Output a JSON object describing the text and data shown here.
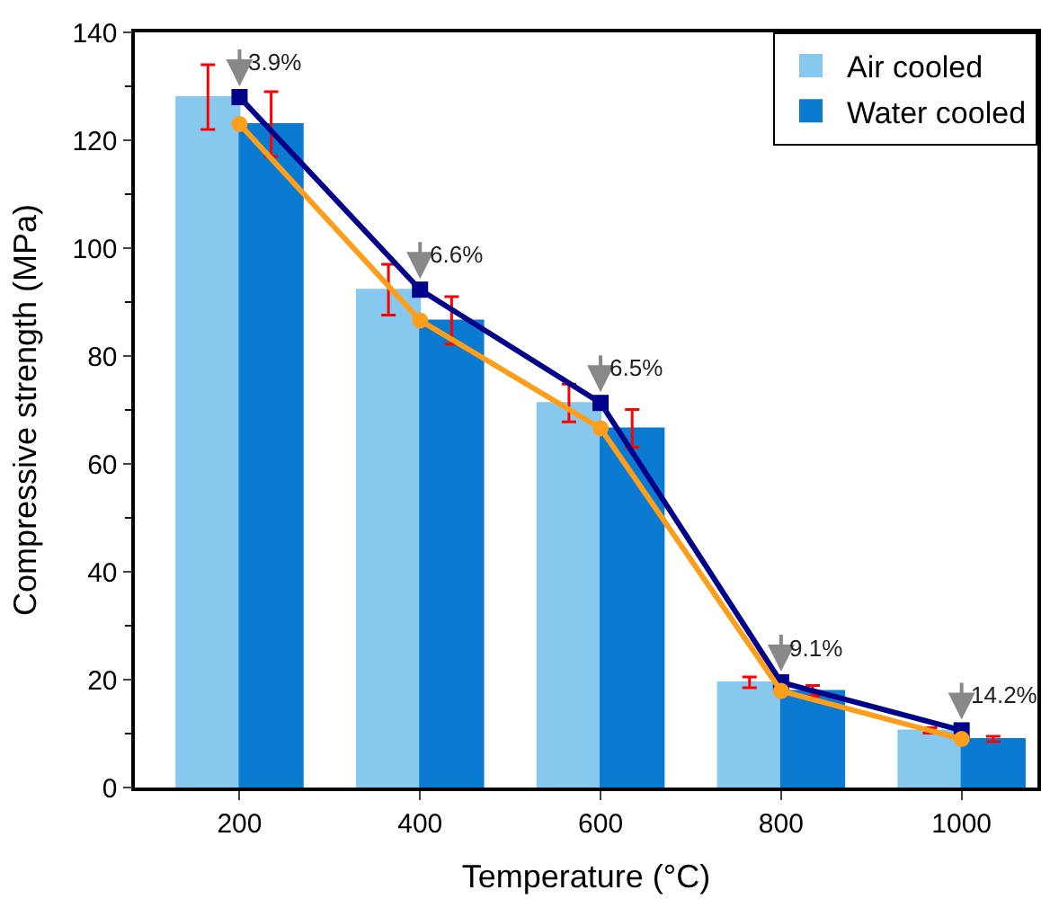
{
  "chart_data": {
    "type": "bar",
    "xlabel": "Temperature (°C)",
    "ylabel": "Compressive strength (MPa)",
    "categories": [
      "200",
      "400",
      "600",
      "800",
      "1000"
    ],
    "series": [
      {
        "name": "Air cooled",
        "color": "#87c8ee",
        "values": [
          128,
          92.3,
          71.3,
          19.5,
          10.6
        ],
        "errors": [
          6,
          4.7,
          3.5,
          1,
          0.5
        ]
      },
      {
        "name": "Water cooled",
        "color": "#0a7bd0",
        "values": [
          123,
          86.6,
          66.6,
          17.9,
          9.0
        ],
        "errors": [
          6,
          4.4,
          3.5,
          1,
          0.5
        ]
      },
      {
        "type": "line",
        "color": "#00008b",
        "marker": "square",
        "values": [
          128,
          92.3,
          71.3,
          19.5,
          10.6
        ]
      },
      {
        "type": "line",
        "color": "#ff9e1b",
        "marker": "circle",
        "values": [
          123,
          86.6,
          66.6,
          17.9,
          9.0
        ]
      }
    ],
    "annotations": [
      {
        "text": "3.9%",
        "x": "200",
        "y": 128
      },
      {
        "text": "6.6%",
        "x": "400",
        "y": 92.3
      },
      {
        "text": "6.5%",
        "x": "600",
        "y": 71.3
      },
      {
        "text": "9.1%",
        "x": "800",
        "y": 19.5
      },
      {
        "text": "14.2%",
        "x": "1000",
        "y": 10.6
      }
    ],
    "ylim": [
      0,
      140
    ],
    "yticks": [
      0,
      20,
      40,
      60,
      80,
      100,
      120,
      140
    ],
    "legend": "top right"
  }
}
